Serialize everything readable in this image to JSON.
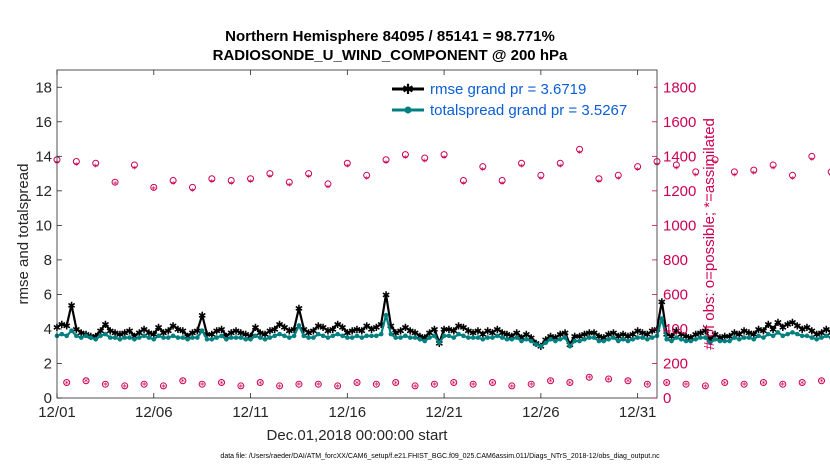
{
  "chart_data": {
    "type": "line",
    "title": "Northern Hemisphere 84095 / 85141 = 98.771%",
    "subtitle": "RADIOSONDE_U_WIND_COMPONENT @ 200 hPa",
    "xlabel": "Dec.01,2018 00:00:00 start",
    "ylabel_left": "rmse and totalspread",
    "ylabel_right": "# of obs: o=possible; *=assimilated",
    "footnote": "data file: /Users/raeder/DAI/ATM_forcXX/CAM6_setup/f.e21.FHIST_BGC.f09_025.CAM6assim.011/Diags_NTrS_2018-12/obs_diag_output.nc",
    "xlim": [
      0,
      31
    ],
    "ylim_left": [
      0,
      19
    ],
    "ylim_right": [
      0,
      1900
    ],
    "x_ticks": [
      0,
      5,
      10,
      15,
      20,
      25,
      30
    ],
    "x_tick_labels": [
      "12/01",
      "12/06",
      "12/11",
      "12/16",
      "12/21",
      "12/26",
      "12/31"
    ],
    "y_ticks_left": [
      0,
      2,
      4,
      6,
      8,
      10,
      12,
      14,
      16,
      18
    ],
    "y_tick_labels_left": [
      "0",
      "2",
      "4",
      "6",
      "8",
      "10",
      "12",
      "14",
      "16",
      "18"
    ],
    "y_ticks_right": [
      0,
      200,
      400,
      600,
      800,
      1000,
      1200,
      1400,
      1600,
      1800
    ],
    "y_tick_labels_right": [
      "0",
      "200",
      "400",
      "600",
      "800",
      "1000",
      "1200",
      "1400",
      "1600",
      "1800"
    ],
    "legend_position": "top-right",
    "series": [
      {
        "name": "rmse grand pr = 3.6719",
        "axis": "left",
        "color": "#000000",
        "marker": "star",
        "x_start": 0,
        "x_step": 0.25,
        "values": [
          4.1,
          4.3,
          4.2,
          5.4,
          4.0,
          3.8,
          3.7,
          3.6,
          3.6,
          3.9,
          4.3,
          3.9,
          3.8,
          3.7,
          3.8,
          3.9,
          3.6,
          3.8,
          4.0,
          3.8,
          3.7,
          4.1,
          3.8,
          3.9,
          4.2,
          4.0,
          3.9,
          3.6,
          3.8,
          3.9,
          4.8,
          3.7,
          3.7,
          3.9,
          4.0,
          3.6,
          3.8,
          3.9,
          3.8,
          3.7,
          3.6,
          4.1,
          3.8,
          3.7,
          3.9,
          4.0,
          4.3,
          4.1,
          3.9,
          4.0,
          5.2,
          4.0,
          3.8,
          3.9,
          4.2,
          4.1,
          3.9,
          4.0,
          4.3,
          4.1,
          3.8,
          3.9,
          4.0,
          3.9,
          4.2,
          4.0,
          4.1,
          4.3,
          6.0,
          4.2,
          3.8,
          3.9,
          4.1,
          3.9,
          3.8,
          3.6,
          3.5,
          3.8,
          4.0,
          3.2,
          4.0,
          4.0,
          3.9,
          4.2,
          4.1,
          3.9,
          3.8,
          3.9,
          3.7,
          3.9,
          3.8,
          4.0,
          3.8,
          3.7,
          3.6,
          3.8,
          3.5,
          3.7,
          3.5,
          3.2,
          3.0,
          3.4,
          3.6,
          3.5,
          3.7,
          3.8,
          3.1,
          3.6,
          3.6,
          3.7,
          3.8,
          3.8,
          3.6,
          3.5,
          3.7,
          3.8,
          3.6,
          3.7,
          3.6,
          3.7,
          3.9,
          3.8,
          3.7,
          3.9,
          4.0,
          5.6,
          3.7,
          3.6,
          3.9,
          3.7,
          3.6,
          3.5,
          3.7,
          3.8,
          3.9,
          3.4,
          3.7,
          3.5,
          3.6,
          3.6,
          3.8,
          3.7,
          3.9,
          3.8,
          3.7,
          4.0,
          3.9,
          4.3,
          4.0,
          4.4,
          4.1,
          4.3,
          4.4,
          4.2,
          4.0,
          4.1,
          3.9,
          3.7,
          3.8,
          4.0,
          3.8,
          3.9,
          4.2,
          4.0,
          4.3,
          4.5,
          4.1,
          4.0,
          4.3,
          4.0,
          4.2,
          4.1,
          3.6,
          4.3,
          4.2,
          4.1,
          4.0,
          4.3,
          4.1,
          4.0,
          4.1,
          4.2,
          4.0,
          4.2,
          4.1,
          4.0,
          3.6,
          3.9,
          4.0,
          4.1,
          3.7,
          3.9,
          4.2,
          4.0,
          4.3,
          4.1,
          4.0,
          3.9,
          4.2,
          4.0,
          4.1,
          4.2,
          4.0,
          4.1,
          4.4,
          4.2,
          4.3,
          4.1,
          4.4,
          4.2,
          4.0,
          4.1,
          4.3,
          4.5,
          4.2,
          4.1,
          4.0,
          4.3,
          4.1,
          4.2,
          4.0,
          4.3,
          4.1,
          4.0,
          4.2,
          4.4,
          4.1,
          4.0,
          4.2,
          4.3,
          4.1,
          4.0,
          4.2,
          4.1,
          4.0,
          4.2,
          4.1,
          3.8,
          4.0,
          4.2,
          4.1,
          4.0,
          4.2,
          4.0,
          4.1,
          4.3,
          4.0,
          4.2,
          4.1,
          4.0,
          4.1,
          3.6,
          3.9,
          4.0,
          3.8,
          3.9,
          4.0,
          4.3,
          4.0,
          3.9,
          4.0,
          4.2,
          3.9,
          4.0,
          4.3,
          4.4,
          4.2,
          4.3,
          4.0,
          4.1,
          3.9,
          3.9,
          4.0,
          3.9,
          4.3,
          4.1,
          3.8,
          3.6,
          3.9,
          3.8,
          3.9,
          4.0,
          3.8,
          3.9,
          3.9,
          4.1,
          3.8,
          3.9,
          4.1,
          4.0,
          4.2,
          4.1,
          4.0,
          3.9,
          3.6,
          3.9,
          3.7,
          3.9,
          4.0,
          4.2,
          4.3,
          4.4,
          4.2,
          3.8,
          3.9,
          4.1,
          4.0,
          3.8,
          4.0,
          4.4,
          4.2,
          4.5,
          4.3,
          4.1,
          4.0,
          4.2,
          4.3,
          4.4,
          4.0,
          4.1,
          4.3,
          4.2,
          4.0,
          3.7
        ]
      },
      {
        "name": "totalspread grand pr = 3.5267",
        "axis": "left",
        "color": "#008080",
        "marker": "circle",
        "x_start": 0,
        "x_step": 0.25,
        "values": [
          3.6,
          3.7,
          3.6,
          3.9,
          3.6,
          3.5,
          3.6,
          3.5,
          3.4,
          3.6,
          3.7,
          3.5,
          3.5,
          3.4,
          3.5,
          3.5,
          3.4,
          3.5,
          3.6,
          3.5,
          3.4,
          3.6,
          3.5,
          3.5,
          3.6,
          3.5,
          3.5,
          3.4,
          3.5,
          3.5,
          3.9,
          3.4,
          3.4,
          3.5,
          3.6,
          3.4,
          3.5,
          3.5,
          3.5,
          3.4,
          3.4,
          3.6,
          3.5,
          3.4,
          3.5,
          3.6,
          3.7,
          3.6,
          3.5,
          3.6,
          4.2,
          3.6,
          3.5,
          3.5,
          3.7,
          3.6,
          3.5,
          3.6,
          3.7,
          3.6,
          3.5,
          3.5,
          3.6,
          3.5,
          3.6,
          3.6,
          3.6,
          3.7,
          4.8,
          3.7,
          3.5,
          3.5,
          3.6,
          3.5,
          3.5,
          3.4,
          3.3,
          3.5,
          3.6,
          3.2,
          3.6,
          3.6,
          3.5,
          3.7,
          3.6,
          3.5,
          3.5,
          3.5,
          3.4,
          3.5,
          3.5,
          3.6,
          3.5,
          3.4,
          3.4,
          3.5,
          3.3,
          3.4,
          3.3,
          3.1,
          3.0,
          3.2,
          3.4,
          3.3,
          3.4,
          3.5,
          3.0,
          3.3,
          3.3,
          3.4,
          3.5,
          3.5,
          3.3,
          3.3,
          3.4,
          3.5,
          3.3,
          3.4,
          3.3,
          3.4,
          3.5,
          3.5,
          3.4,
          3.5,
          3.6,
          4.6,
          3.4,
          3.3,
          3.5,
          3.4,
          3.3,
          3.3,
          3.4,
          3.5,
          3.5,
          3.2,
          3.4,
          3.3,
          3.3,
          3.3,
          3.5,
          3.4,
          3.5,
          3.5,
          3.4,
          3.6,
          3.5,
          3.7,
          3.6,
          3.8,
          3.6,
          3.7,
          3.8,
          3.7,
          3.6,
          3.6,
          3.5,
          3.4,
          3.5,
          3.6,
          3.5,
          3.5,
          3.7,
          3.6,
          3.7,
          3.8,
          3.6,
          3.6,
          3.7,
          3.6,
          3.7,
          3.6,
          3.3,
          3.7,
          3.7,
          3.6,
          3.6,
          3.7,
          3.6,
          3.6,
          3.6,
          3.7,
          3.6,
          3.7,
          3.6,
          3.6,
          3.3,
          3.5,
          3.6,
          3.6,
          3.4,
          3.5,
          3.7,
          3.6,
          3.7,
          3.6,
          3.6,
          3.5,
          3.7,
          3.6,
          3.6,
          3.7,
          3.6,
          3.6,
          3.8,
          3.7,
          3.7,
          3.6,
          3.8,
          3.7,
          3.6,
          3.6,
          3.7,
          3.8,
          3.7,
          3.6,
          3.6,
          3.7,
          3.6,
          3.7,
          3.6,
          3.7,
          3.6,
          3.6,
          3.7,
          3.8,
          3.6,
          3.6,
          3.7,
          3.7,
          3.6,
          3.6,
          3.7,
          3.6,
          3.6,
          3.7,
          3.6,
          3.5,
          3.6,
          3.7,
          3.6,
          3.6,
          3.7,
          3.6,
          3.6,
          3.7,
          3.6,
          3.7,
          3.6,
          3.6,
          3.6,
          3.3,
          3.5,
          3.6,
          3.5,
          3.5,
          3.6,
          3.7,
          3.6,
          3.5,
          3.6,
          3.7,
          3.5,
          3.6,
          3.7,
          3.8,
          3.7,
          3.7,
          3.6,
          3.6,
          3.5,
          3.5,
          3.6,
          3.5,
          3.7,
          3.6,
          3.5,
          3.3,
          3.5,
          3.5,
          3.5,
          3.6,
          3.5,
          3.5,
          3.5,
          3.6,
          3.5,
          3.5,
          3.6,
          3.6,
          3.7,
          3.6,
          3.6,
          3.5,
          3.3,
          3.5,
          3.4,
          3.5,
          3.6,
          3.7,
          3.7,
          3.8,
          3.7,
          3.5,
          3.5,
          3.6,
          3.6,
          3.5,
          3.6,
          3.8,
          3.7,
          3.8,
          3.7,
          3.6,
          3.6,
          3.7,
          3.7,
          3.8,
          3.6,
          3.6,
          3.7,
          3.7,
          3.6,
          3.4
        ]
      },
      {
        "name": "obs possible (12Z)",
        "axis": "right",
        "color": "#cc0055",
        "marker": "circle-open",
        "x_start": 0,
        "x_step": 0.5,
        "values": [
          1380,
          90,
          1370,
          100,
          1360,
          80,
          1250,
          70,
          1350,
          80,
          1220,
          70,
          1260,
          100,
          1220,
          80,
          1270,
          90,
          1260,
          70,
          1270,
          90,
          1300,
          70,
          1250,
          80,
          1300,
          80,
          1240,
          70,
          1360,
          90,
          1290,
          80,
          1380,
          90,
          1410,
          70,
          1390,
          80,
          1410,
          90,
          1260,
          80,
          1340,
          90,
          1260,
          70,
          1360,
          80,
          1290,
          100,
          1360,
          90,
          1440,
          120,
          1270,
          110,
          1290,
          100,
          1340,
          80,
          1370,
          90,
          1350,
          80,
          1310,
          70,
          1380,
          90,
          1310,
          80,
          1320,
          90,
          1350,
          80,
          1290,
          90,
          1400,
          100,
          1310,
          70,
          1360,
          80,
          1310,
          70,
          1260,
          90,
          1320,
          80,
          1250,
          70,
          1270,
          90,
          1230,
          80,
          1160,
          70,
          1220,
          80,
          1180,
          70,
          1240,
          90,
          1210,
          70,
          1270,
          80,
          1260,
          60,
          1300,
          80,
          1210,
          70,
          1260,
          90,
          1290,
          70,
          1280,
          80,
          1330,
          90,
          1270,
          80,
          1310,
          70,
          1250,
          60,
          1360,
          80,
          1290,
          80,
          1330,
          70,
          1240,
          60,
          1320,
          70,
          1280,
          60,
          1310
        ]
      },
      {
        "name": "obs assimilated (12Z)",
        "axis": "right",
        "color": "#cc0055",
        "marker": "asterisk",
        "x_start": 0,
        "x_step": 0.5,
        "values": [
          1360,
          85,
          1350,
          95,
          1340,
          75,
          1240,
          65,
          1330,
          75,
          1210,
          65,
          1240,
          95,
          1200,
          75,
          1250,
          85,
          1240,
          65,
          1250,
          85,
          1280,
          65,
          1230,
          75,
          1280,
          75,
          1220,
          65,
          1340,
          85,
          1270,
          75,
          1360,
          85,
          1390,
          65,
          1370,
          75,
          1390,
          85,
          1240,
          75,
          1320,
          85,
          1240,
          65,
          1340,
          75,
          1270,
          95,
          1340,
          85,
          1420,
          115,
          1250,
          105,
          1270,
          95,
          1320,
          75,
          1350,
          85,
          1330,
          75,
          1290,
          65,
          1360,
          85,
          1290,
          75,
          1300,
          85,
          1330,
          75,
          1270,
          85,
          1380,
          95,
          1290,
          65,
          1340,
          75,
          1290,
          65,
          1240,
          85,
          1300,
          75,
          1230,
          65,
          1250,
          85,
          1210,
          75,
          1140,
          65,
          1200,
          75,
          1160,
          65,
          1220,
          85,
          1190,
          65,
          1250,
          75,
          1240,
          55,
          1280,
          75,
          1190,
          65,
          1240,
          85,
          1270,
          65,
          1260,
          75,
          1310,
          85,
          1250,
          75,
          1290,
          65,
          1230,
          55,
          1340,
          75,
          1270,
          75,
          1310,
          65,
          1220,
          55,
          1300,
          65,
          1260,
          55,
          1290
        ]
      }
    ]
  },
  "legend": {
    "rmse_label": "rmse grand pr = 3.6719",
    "spread_label": "totalspread grand pr = 3.5267"
  }
}
